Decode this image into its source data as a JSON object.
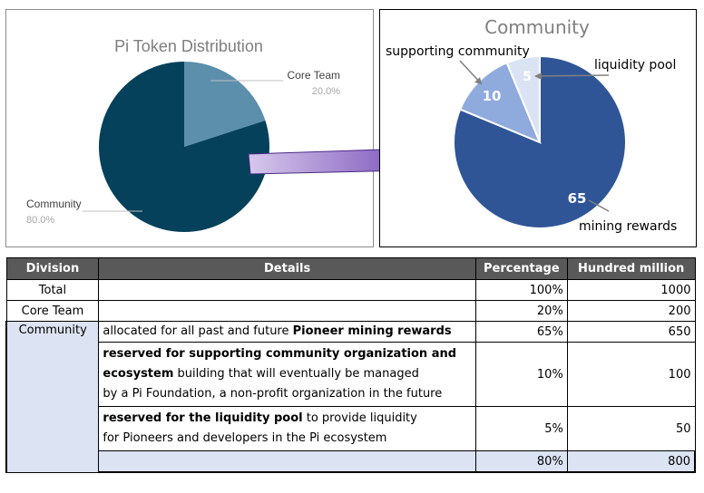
{
  "chart_data": [
    {
      "type": "pie",
      "title": "Pi Token Distribution",
      "slices": [
        {
          "label": "Core Team",
          "value": 20.0,
          "value_label": "20.0%",
          "color": "#5b8fac"
        },
        {
          "label": "Community",
          "value": 80.0,
          "value_label": "80.0%",
          "color": "#05415b"
        }
      ]
    },
    {
      "type": "pie",
      "title": "Community",
      "slices": [
        {
          "label": "mining rewards",
          "value": 65,
          "value_label": "65",
          "color": "#2f5597"
        },
        {
          "label": "supporting community",
          "value": 10,
          "value_label": "10",
          "color": "#8faadc"
        },
        {
          "label": "liquidity pool",
          "value": 5,
          "value_label": "5",
          "color": "#dae3f3"
        }
      ]
    }
  ],
  "table": {
    "headers": [
      "Division",
      "Details",
      "Percentage",
      "Hundred million"
    ],
    "total": {
      "division": "Total",
      "details": "",
      "percentage": "100%",
      "amount": "1000"
    },
    "core": {
      "division": "Core Team",
      "details": "",
      "percentage": "20%",
      "amount": "200"
    },
    "community": {
      "division": "Community",
      "r1": {
        "pre": "allocated for all past and future ",
        "bold": "Pioneer mining rewards",
        "percentage": "65%",
        "amount": "650"
      },
      "r2": {
        "bold1": "reserved for supporting community organization and",
        "bold2": "ecosystem",
        "rest1": " building that will eventually be managed",
        "line3": "by a Pi Foundation, a non-profit organization in the future",
        "percentage": "10%",
        "amount": "100"
      },
      "r3": {
        "bold": "reserved for the liquidity pool",
        "rest1": " to provide liquidity",
        "line2": "for Pioneers and developers in the Pi ecosystem",
        "percentage": "5%",
        "amount": "50"
      },
      "subtotal": {
        "percentage": "80%",
        "amount": "800"
      }
    }
  }
}
